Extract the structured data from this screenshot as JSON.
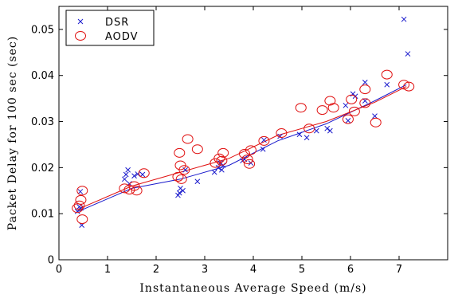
{
  "chart_data": {
    "type": "scatter",
    "title": "",
    "xlabel": "Instantaneous Average Speed (m/s)",
    "ylabel": "Packet Delay for 100 sec (sec)",
    "xlim": [
      0,
      8
    ],
    "ylim": [
      0,
      0.055
    ],
    "x_ticks": [
      0,
      1,
      2,
      3,
      4,
      5,
      6,
      7
    ],
    "x_tick_labels": [
      "0",
      "1",
      "2",
      "3",
      "4",
      "5",
      "6",
      "7"
    ],
    "y_ticks": [
      0,
      0.01,
      0.02,
      0.03,
      0.04,
      0.05
    ],
    "y_tick_labels": [
      "0",
      "0.01",
      "0.02",
      "0.03",
      "0.04",
      "0.05"
    ],
    "grid": false,
    "legend_position": "top-left",
    "series": [
      {
        "name": "DSR",
        "marker": "x",
        "color": "#1a1acc",
        "points": [
          [
            0.38,
            0.0105
          ],
          [
            0.42,
            0.0115
          ],
          [
            0.45,
            0.0112
          ],
          [
            0.47,
            0.0075
          ],
          [
            0.44,
            0.0148
          ],
          [
            1.35,
            0.0175
          ],
          [
            1.38,
            0.0185
          ],
          [
            1.42,
            0.0195
          ],
          [
            1.45,
            0.0165
          ],
          [
            1.55,
            0.0182
          ],
          [
            1.62,
            0.0186
          ],
          [
            1.72,
            0.0185
          ],
          [
            2.45,
            0.014
          ],
          [
            2.48,
            0.0145
          ],
          [
            2.5,
            0.0155
          ],
          [
            2.55,
            0.015
          ],
          [
            2.6,
            0.0195
          ],
          [
            2.85,
            0.017
          ],
          [
            3.2,
            0.019
          ],
          [
            3.28,
            0.02
          ],
          [
            3.32,
            0.021
          ],
          [
            3.35,
            0.0195
          ],
          [
            3.38,
            0.0205
          ],
          [
            3.78,
            0.0215
          ],
          [
            3.82,
            0.0218
          ],
          [
            3.95,
            0.021
          ],
          [
            4.2,
            0.024
          ],
          [
            4.22,
            0.026
          ],
          [
            4.55,
            0.0268
          ],
          [
            4.95,
            0.0272
          ],
          [
            5.1,
            0.0265
          ],
          [
            5.3,
            0.028
          ],
          [
            5.52,
            0.0285
          ],
          [
            5.58,
            0.028
          ],
          [
            5.9,
            0.0335
          ],
          [
            5.95,
            0.0302
          ],
          [
            6.05,
            0.036
          ],
          [
            6.1,
            0.0355
          ],
          [
            6.3,
            0.0345
          ],
          [
            6.3,
            0.0385
          ],
          [
            6.5,
            0.0312
          ],
          [
            6.75,
            0.038
          ],
          [
            7.1,
            0.0522
          ],
          [
            7.18,
            0.0447
          ]
        ],
        "trend": [
          [
            0.4,
            0.0105
          ],
          [
            1.5,
            0.0155
          ],
          [
            2.5,
            0.0175
          ],
          [
            3.5,
            0.0205
          ],
          [
            4.5,
            0.0258
          ],
          [
            5.5,
            0.0295
          ],
          [
            6.5,
            0.0345
          ],
          [
            7.15,
            0.038
          ]
        ]
      },
      {
        "name": "AODV",
        "marker": "o",
        "color": "#e01010",
        "points": [
          [
            0.38,
            0.0112
          ],
          [
            0.42,
            0.0118
          ],
          [
            0.45,
            0.013
          ],
          [
            0.48,
            0.0088
          ],
          [
            0.48,
            0.015
          ],
          [
            1.35,
            0.0155
          ],
          [
            1.45,
            0.0152
          ],
          [
            1.55,
            0.016
          ],
          [
            1.6,
            0.015
          ],
          [
            1.75,
            0.0188
          ],
          [
            2.45,
            0.018
          ],
          [
            2.48,
            0.0232
          ],
          [
            2.5,
            0.0205
          ],
          [
            2.52,
            0.0175
          ],
          [
            2.58,
            0.0195
          ],
          [
            2.65,
            0.0262
          ],
          [
            2.85,
            0.024
          ],
          [
            3.22,
            0.021
          ],
          [
            3.3,
            0.022
          ],
          [
            3.35,
            0.0215
          ],
          [
            3.38,
            0.0232
          ],
          [
            3.82,
            0.023
          ],
          [
            3.88,
            0.0218
          ],
          [
            3.92,
            0.0208
          ],
          [
            3.95,
            0.0238
          ],
          [
            4.22,
            0.0258
          ],
          [
            4.58,
            0.0275
          ],
          [
            4.98,
            0.033
          ],
          [
            5.15,
            0.0285
          ],
          [
            5.42,
            0.0325
          ],
          [
            5.58,
            0.0345
          ],
          [
            5.65,
            0.033
          ],
          [
            5.95,
            0.0305
          ],
          [
            6.02,
            0.0348
          ],
          [
            6.08,
            0.0322
          ],
          [
            6.3,
            0.034
          ],
          [
            6.3,
            0.037
          ],
          [
            6.52,
            0.0298
          ],
          [
            6.75,
            0.0402
          ],
          [
            7.1,
            0.038
          ],
          [
            7.2,
            0.0376
          ]
        ],
        "trend": [
          [
            0.4,
            0.011
          ],
          [
            1.5,
            0.016
          ],
          [
            2.5,
            0.019
          ],
          [
            3.5,
            0.022
          ],
          [
            4.5,
            0.027
          ],
          [
            5.5,
            0.03
          ],
          [
            6.5,
            0.0342
          ],
          [
            7.15,
            0.0376
          ]
        ]
      }
    ]
  }
}
